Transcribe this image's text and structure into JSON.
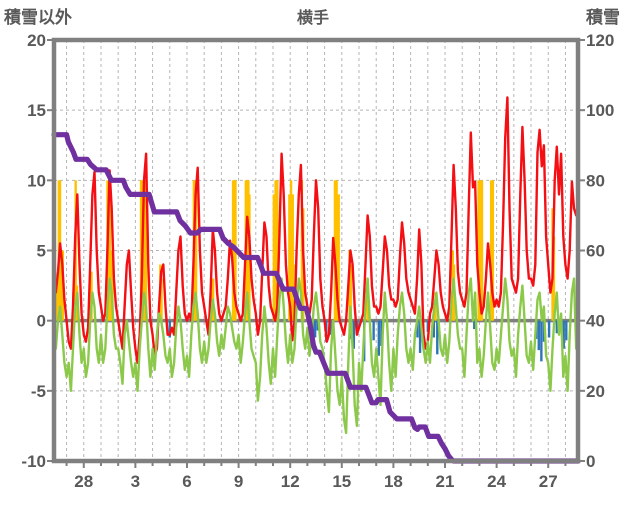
{
  "header": {
    "title": "横手",
    "left_axis_title": "積雪以外",
    "right_axis_title": "積雪"
  },
  "colors": {
    "background": "#ffffff",
    "frame": "#808080",
    "zero_line": "#7f7f7f",
    "gridline": "#b5b5b5",
    "text": "#595959",
    "red_series": "#f40f14",
    "green_series": "#8cc94a",
    "purple_series": "#7030a0",
    "orange_series": "#ffc000",
    "blue_series": "#2e75b6"
  },
  "chart_data": {
    "type": "line",
    "title": "横手",
    "left_axis": {
      "title": "積雪以外",
      "range": [
        -10,
        20
      ],
      "ticks": [
        20,
        15,
        10,
        5,
        0,
        -5,
        -10
      ]
    },
    "right_axis": {
      "title": "積雪",
      "range": [
        0,
        120
      ],
      "ticks": [
        120,
        100,
        80,
        60,
        40,
        20,
        0
      ]
    },
    "x_axis": {
      "range_days": [
        -1.73,
        28.73
      ],
      "gridline_every_days": 1,
      "tick_days": [
        0,
        3,
        6,
        9,
        12,
        15,
        18,
        21,
        24,
        27
      ],
      "tick_labels": [
        "28",
        "3",
        "6",
        "9",
        "12",
        "15",
        "18",
        "21",
        "24",
        "27"
      ]
    },
    "grid": {
      "horizontal_dashed_at": [
        15,
        10,
        5,
        -5
      ],
      "zero_line_at": 0
    },
    "series": [
      {
        "id": "snow-depth",
        "type": "line",
        "axis": "right",
        "color": "#7030a0",
        "width": 5.2,
        "points": [
          [
            -1.73,
            93
          ],
          [
            -1.0,
            93
          ],
          [
            -0.9,
            91
          ],
          [
            -0.8,
            90
          ],
          [
            -0.6,
            88
          ],
          [
            -0.45,
            86
          ],
          [
            0.2,
            86
          ],
          [
            0.4,
            84.5
          ],
          [
            0.75,
            83
          ],
          [
            1.3,
            83
          ],
          [
            1.5,
            81
          ],
          [
            1.6,
            80
          ],
          [
            2.3,
            80
          ],
          [
            2.45,
            78
          ],
          [
            2.7,
            76
          ],
          [
            3.8,
            76
          ],
          [
            3.95,
            73.5
          ],
          [
            4.1,
            71
          ],
          [
            5.4,
            71
          ],
          [
            5.6,
            68.5
          ],
          [
            5.9,
            67
          ],
          [
            6.2,
            65
          ],
          [
            6.6,
            65
          ],
          [
            6.8,
            66
          ],
          [
            7.9,
            66
          ],
          [
            8.1,
            63.5
          ],
          [
            8.4,
            62
          ],
          [
            8.7,
            61
          ],
          [
            9.0,
            59.5
          ],
          [
            9.3,
            58
          ],
          [
            10.1,
            58
          ],
          [
            10.3,
            55.5
          ],
          [
            10.45,
            53.5
          ],
          [
            11.2,
            53.5
          ],
          [
            11.4,
            51
          ],
          [
            11.6,
            49
          ],
          [
            12.2,
            49
          ],
          [
            12.4,
            46
          ],
          [
            12.6,
            43.5
          ],
          [
            12.95,
            43.5
          ],
          [
            13.15,
            39
          ],
          [
            13.35,
            33
          ],
          [
            13.5,
            31
          ],
          [
            13.7,
            31
          ],
          [
            13.95,
            28
          ],
          [
            14.2,
            25
          ],
          [
            15.2,
            25
          ],
          [
            15.35,
            23
          ],
          [
            15.5,
            21
          ],
          [
            16.4,
            21
          ],
          [
            16.6,
            18.5
          ],
          [
            16.75,
            16.6
          ],
          [
            17.0,
            16.6
          ],
          [
            17.1,
            17.5
          ],
          [
            17.6,
            17.5
          ],
          [
            17.8,
            14
          ],
          [
            18.2,
            12
          ],
          [
            19.05,
            12
          ],
          [
            19.25,
            9.5
          ],
          [
            19.4,
            9
          ],
          [
            19.5,
            9.7
          ],
          [
            19.85,
            9.7
          ],
          [
            20.05,
            7
          ],
          [
            20.6,
            7
          ],
          [
            20.8,
            5
          ],
          [
            21.0,
            3.5
          ],
          [
            21.2,
            1.5
          ],
          [
            21.4,
            0.3
          ],
          [
            21.5,
            0
          ],
          [
            28.73,
            0
          ]
        ]
      },
      {
        "id": "red-line",
        "type": "line",
        "axis": "left",
        "color": "#f40f14",
        "width": 2.4,
        "start_day": -1.625,
        "step_days": 0.125,
        "values": [
          2,
          3.5,
          5.5,
          4,
          1.5,
          0,
          -1.5,
          -2,
          1,
          6,
          9,
          4,
          0.5,
          -1,
          -1.5,
          -0.5,
          4,
          9,
          10.6,
          5,
          2,
          1,
          0,
          0.5,
          5,
          10.7,
          8,
          3,
          1,
          0,
          -1,
          -2,
          1,
          4,
          5,
          2,
          -0.5,
          -2,
          -3,
          -1,
          3,
          10,
          11.9,
          4,
          0,
          -1,
          -2.5,
          -2,
          1,
          3.5,
          4,
          1,
          -1,
          -1,
          -0.5,
          -1,
          2,
          5,
          6,
          2.5,
          0.5,
          0,
          0.5,
          0,
          4,
          9,
          10.9,
          5,
          2,
          1,
          0,
          -1,
          2,
          6.5,
          5,
          2,
          0.5,
          0,
          0.5,
          1,
          3,
          5.7,
          4.5,
          2,
          1,
          0.5,
          0,
          0.5,
          4,
          7.4,
          6,
          3,
          1.5,
          0.5,
          -1,
          0,
          3.5,
          7,
          6,
          2.5,
          1,
          0.5,
          0,
          1,
          6,
          11.9,
          9,
          4,
          2,
          1,
          -1.4,
          0,
          5,
          9,
          11.1,
          5,
          2,
          1,
          0.5,
          1.5,
          6,
          10,
          8,
          3,
          1,
          0,
          -1.5,
          -1,
          2,
          5.9,
          4,
          1.5,
          0,
          -0.5,
          -1,
          0,
          2.5,
          5,
          4,
          1,
          -1,
          -0.5,
          0,
          0.5,
          4,
          7.5,
          6,
          2.5,
          1,
          1,
          0.5,
          1,
          3.5,
          6,
          5,
          2.5,
          1.5,
          1.5,
          1,
          1.5,
          4.5,
          7,
          5.5,
          3,
          2,
          1.5,
          1,
          0.5,
          3,
          6.5,
          4,
          -1,
          -2,
          -1.5,
          0.5,
          1,
          3,
          5,
          4,
          2,
          1,
          0.5,
          0,
          1,
          6,
          11.1,
          8,
          3.5,
          2,
          1.5,
          1,
          2,
          8,
          13.4,
          9.5,
          9.9,
          4,
          2,
          0.5,
          1,
          3,
          5.5,
          4,
          2,
          1,
          1.5,
          1,
          2,
          7,
          13,
          15.9,
          8,
          3,
          2.5,
          2,
          3,
          9,
          13.8,
          10,
          5,
          3,
          3,
          2.5,
          4,
          12,
          13.6,
          11,
          12.5,
          6,
          4,
          2,
          3,
          10,
          12.4,
          9,
          11.9,
          6,
          4,
          3,
          5,
          9.9,
          8,
          7.5
        ]
      },
      {
        "id": "green-line",
        "type": "line",
        "axis": "left",
        "color": "#8cc94a",
        "width": 2.4,
        "start_day": -1.625,
        "step_days": 0.125,
        "values": [
          -2,
          0,
          1,
          -1,
          -3,
          -4,
          -3,
          -5,
          -2,
          1,
          2,
          -1,
          -3,
          -2,
          -4,
          -3,
          0,
          2,
          1,
          -2,
          -3,
          -1,
          -3,
          -2,
          1,
          3,
          2,
          -1,
          -2,
          -2,
          -3,
          -4.5,
          -1,
          0,
          -1.5,
          -3,
          -4,
          -3,
          -5,
          -2,
          0,
          2,
          1,
          -2,
          -4,
          -2,
          -3.5,
          -1,
          0.5,
          0,
          -1,
          -2.5,
          -3,
          -2,
          -4,
          -3,
          -0.5,
          1,
          0,
          -2,
          -3.5,
          -2.5,
          -4,
          -1,
          1,
          2,
          0.5,
          -2,
          -3,
          -1.5,
          -3,
          -2,
          0,
          1.5,
          0.5,
          -1.5,
          -2.5,
          -1,
          -2,
          -0.5,
          1,
          0.5,
          -0.5,
          -1.5,
          -2,
          -1,
          -3,
          -1.5,
          0.5,
          2,
          0,
          -2,
          -2.5,
          -3,
          -5.7,
          -4,
          -1,
          1,
          -0.5,
          -3,
          -4.5,
          -2,
          -4,
          -1,
          1.5,
          3,
          1,
          -1.5,
          -3,
          -1,
          -3,
          -2,
          1,
          3,
          2,
          -1,
          -2,
          -0.5,
          -2.5,
          -1,
          1,
          2,
          0.5,
          -1.5,
          -2,
          -3,
          -5,
          -6.5,
          -2,
          0,
          -2.5,
          -5,
          -6,
          -4,
          -7,
          -8,
          -3,
          1,
          -2,
          -6,
          -7.5,
          -3,
          -5,
          -2,
          1,
          3,
          0,
          -3,
          -4,
          -2,
          -4,
          -6,
          -1,
          2,
          0,
          -3,
          -5,
          -2,
          -4,
          -1,
          1,
          2,
          0.5,
          -2,
          -3,
          -2,
          -3.5,
          -1,
          0,
          1,
          -0.5,
          -2,
          -3,
          -1.5,
          -3,
          -0.5,
          1,
          2,
          0,
          -2,
          -2.5,
          -1,
          -3,
          -1.5,
          1.5,
          3,
          1,
          -1,
          -2,
          -2,
          -4,
          -1,
          2,
          3,
          0,
          2,
          -3,
          -2,
          -4,
          -2.5,
          0,
          2,
          -0.5,
          -3,
          -3.5,
          -2,
          -3,
          -1,
          1,
          3,
          1.5,
          -1.5,
          -2.5,
          -2,
          -4,
          -1,
          1,
          2.5,
          0,
          -2.5,
          -3,
          -1.5,
          -3.5,
          -1,
          1.5,
          2,
          0,
          1,
          -2.5,
          -3,
          -5,
          -2,
          0.5,
          2,
          -1,
          0.5,
          -4,
          -2.5,
          -5,
          -1,
          2,
          3,
          -2
        ]
      },
      {
        "id": "orange-bars",
        "type": "bar",
        "axis": "left",
        "color": "#ffc000",
        "bar_width": 2.4,
        "points": [
          [
            -1.55,
            2.5
          ],
          [
            -1.45,
            10
          ],
          [
            -1.38,
            10
          ],
          [
            -1.3,
            4
          ],
          [
            -1.22,
            5
          ],
          [
            -0.6,
            2
          ],
          [
            -0.52,
            3
          ],
          [
            -0.47,
            10
          ],
          [
            -0.4,
            2.5
          ],
          [
            0.35,
            2
          ],
          [
            0.45,
            3.5
          ],
          [
            1.38,
            10
          ],
          [
            1.45,
            10
          ],
          [
            1.52,
            10
          ],
          [
            1.6,
            5
          ],
          [
            1.67,
            3
          ],
          [
            3.33,
            10
          ],
          [
            3.4,
            10
          ],
          [
            3.47,
            10
          ],
          [
            3.56,
            10
          ],
          [
            3.62,
            8
          ],
          [
            4.45,
            4
          ],
          [
            4.52,
            3
          ],
          [
            6.4,
            10
          ],
          [
            6.47,
            10
          ],
          [
            6.53,
            10
          ],
          [
            7.45,
            2
          ],
          [
            7.52,
            3
          ],
          [
            8.68,
            10
          ],
          [
            8.75,
            10
          ],
          [
            8.82,
            10
          ],
          [
            9.42,
            10
          ],
          [
            9.5,
            10
          ],
          [
            9.57,
            10
          ],
          [
            9.63,
            9
          ],
          [
            11.05,
            9
          ],
          [
            11.15,
            10
          ],
          [
            11.25,
            10
          ],
          [
            11.95,
            9
          ],
          [
            12.05,
            10
          ],
          [
            12.15,
            9
          ],
          [
            12.3,
            4
          ],
          [
            12.68,
            10
          ],
          [
            12.76,
            8
          ],
          [
            14.6,
            10
          ],
          [
            14.7,
            10
          ],
          [
            14.82,
            9
          ],
          [
            15.45,
            5
          ],
          [
            15.52,
            4
          ],
          [
            16.5,
            3
          ],
          [
            20.45,
            2
          ],
          [
            21.45,
            5
          ],
          [
            21.52,
            4
          ],
          [
            22.95,
            10
          ],
          [
            23.05,
            10
          ],
          [
            23.15,
            10
          ],
          [
            23.68,
            10
          ],
          [
            23.78,
            10
          ],
          [
            27.25,
            8
          ],
          [
            27.33,
            6
          ]
        ]
      },
      {
        "id": "blue-bars",
        "type": "bar",
        "axis": "left",
        "color": "#2e75b6",
        "bar_width": 2.4,
        "points": [
          [
            5.0,
            -1.2
          ],
          [
            13.35,
            -0.8
          ],
          [
            13.45,
            -1.2
          ],
          [
            13.6,
            -0.7
          ],
          [
            14.1,
            -1.5
          ],
          [
            14.35,
            -1.0
          ],
          [
            15.55,
            -1.3
          ],
          [
            15.7,
            -2.0
          ],
          [
            15.9,
            -1.0
          ],
          [
            16.3,
            -2.9
          ],
          [
            16.85,
            -1.4
          ],
          [
            17.15,
            -2.5
          ],
          [
            17.3,
            -1.8
          ],
          [
            19.4,
            -1.2
          ],
          [
            19.55,
            -2.3
          ],
          [
            19.7,
            -1.5
          ],
          [
            20.0,
            -0.8
          ],
          [
            20.35,
            -1.2
          ],
          [
            20.55,
            -2.4
          ],
          [
            22.7,
            -0.6
          ],
          [
            26.3,
            -1.3
          ],
          [
            26.45,
            -2.1
          ],
          [
            26.6,
            -2.9
          ],
          [
            26.75,
            -1.5
          ],
          [
            27.05,
            -1.2
          ],
          [
            27.5,
            -0.9
          ],
          [
            27.9,
            -2.0
          ],
          [
            28.05,
            -1.4
          ],
          [
            28.6,
            -0.9
          ]
        ]
      }
    ]
  }
}
